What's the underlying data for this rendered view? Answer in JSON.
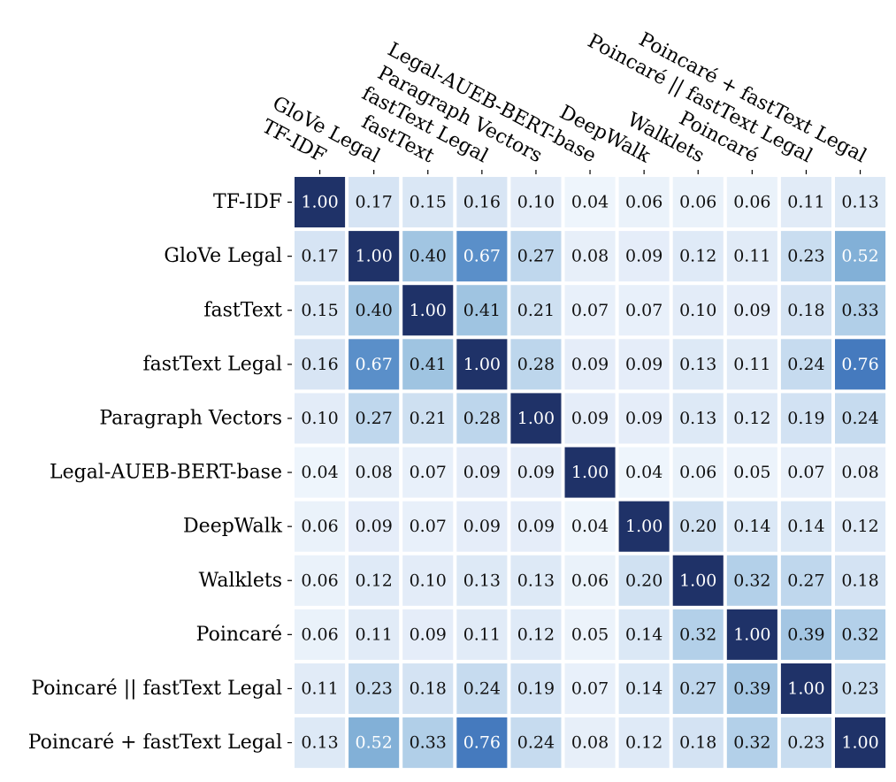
{
  "chart_data": {
    "type": "heatmap",
    "title": "",
    "xlabel": "",
    "ylabel": "",
    "labels": [
      "TF-IDF",
      "GloVe Legal",
      "fastText",
      "fastText Legal",
      "Paragraph Vectors",
      "Legal-AUEB-BERT-base",
      "DeepWalk",
      "Walklets",
      "Poincaré",
      "Poincaré || fastText Legal",
      "Poincaré + fastText Legal"
    ],
    "values": [
      [
        1.0,
        0.17,
        0.15,
        0.16,
        0.1,
        0.04,
        0.06,
        0.06,
        0.06,
        0.11,
        0.13
      ],
      [
        0.17,
        1.0,
        0.4,
        0.67,
        0.27,
        0.08,
        0.09,
        0.12,
        0.11,
        0.23,
        0.52
      ],
      [
        0.15,
        0.4,
        1.0,
        0.41,
        0.21,
        0.07,
        0.07,
        0.1,
        0.09,
        0.18,
        0.33
      ],
      [
        0.16,
        0.67,
        0.41,
        1.0,
        0.28,
        0.09,
        0.09,
        0.13,
        0.11,
        0.24,
        0.76
      ],
      [
        0.1,
        0.27,
        0.21,
        0.28,
        1.0,
        0.09,
        0.09,
        0.13,
        0.12,
        0.19,
        0.24
      ],
      [
        0.04,
        0.08,
        0.07,
        0.09,
        0.09,
        1.0,
        0.04,
        0.06,
        0.05,
        0.07,
        0.08
      ],
      [
        0.06,
        0.09,
        0.07,
        0.09,
        0.09,
        0.04,
        1.0,
        0.2,
        0.14,
        0.14,
        0.12
      ],
      [
        0.06,
        0.12,
        0.1,
        0.13,
        0.13,
        0.06,
        0.2,
        1.0,
        0.32,
        0.27,
        0.18
      ],
      [
        0.06,
        0.11,
        0.09,
        0.11,
        0.12,
        0.05,
        0.14,
        0.32,
        1.0,
        0.39,
        0.32
      ],
      [
        0.11,
        0.23,
        0.18,
        0.24,
        0.19,
        0.07,
        0.14,
        0.27,
        0.39,
        1.0,
        0.23
      ],
      [
        0.13,
        0.52,
        0.33,
        0.76,
        0.24,
        0.08,
        0.12,
        0.18,
        0.32,
        0.23,
        1.0
      ]
    ],
    "colormap": "Blues",
    "vmin": 0,
    "vmax": 1,
    "low_color": "#f7fbff",
    "high_color": "#1f3268",
    "annotated": true,
    "x_label_position": "top",
    "x_label_rotation": "diagonal",
    "grid": false,
    "legend": "none"
  }
}
